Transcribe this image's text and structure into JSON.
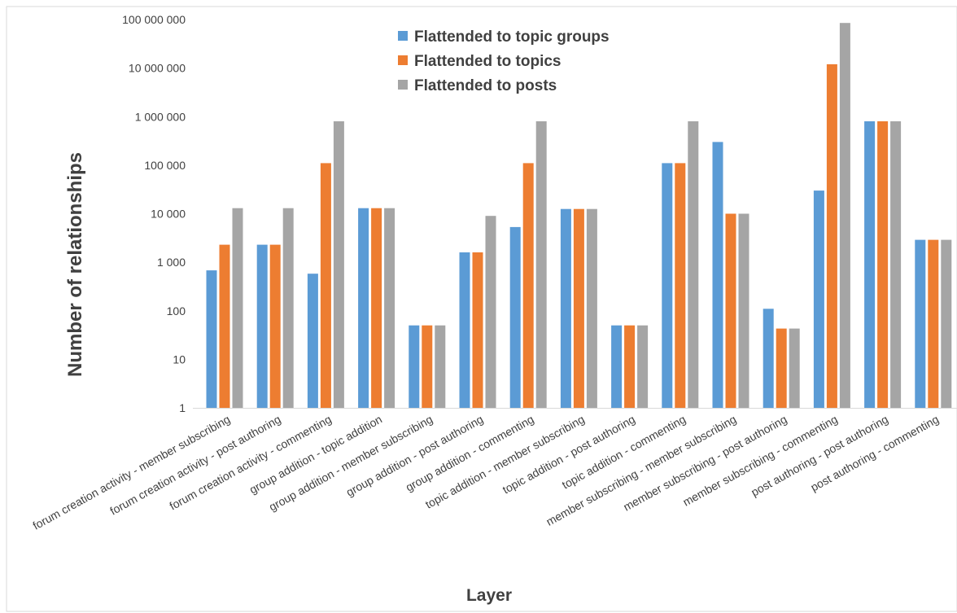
{
  "chart_data": {
    "type": "bar",
    "y_scale": "log",
    "ylim": [
      1,
      100000000
    ],
    "grid": false,
    "legend_position": "top",
    "xlabel": "Layer",
    "ylabel": "Number of relationships",
    "yticks": [
      1,
      10,
      100,
      1000,
      10000,
      100000,
      1000000,
      10000000,
      100000000
    ],
    "ytick_labels": [
      "1",
      "10",
      "100",
      "1 000",
      "10 000",
      "100 000",
      "1 000 000",
      "10 000 000",
      "100 000 000"
    ],
    "categories": [
      "forum creation activity - member subscribing",
      "forum creation activity - post authoring",
      "forum creation activity - commenting",
      "group addition - topic addition",
      "group addition - member subscribing",
      "group addition - post authoring",
      "group addition - commenting",
      "topic addition - member subscribing",
      "topic addition - post authoring",
      "topic addition - commenting",
      "member subscribing - member subscribing",
      "member subscribing - post authoring",
      "member subscribing - commenting",
      "post authoring - post authoring",
      "post authoring - commenting"
    ],
    "series": [
      {
        "name": "Flattended to topic groups",
        "color": "#5B9BD5",
        "values": [
          680,
          2300,
          580,
          13000,
          50,
          1600,
          5300,
          12500,
          50,
          110000,
          300000,
          110,
          30000,
          800000,
          2900
        ]
      },
      {
        "name": "Flattended to topics",
        "color": "#ED7D31",
        "values": [
          2300,
          2300,
          110000,
          13000,
          50,
          1600,
          110000,
          12500,
          50,
          110000,
          10000,
          43,
          12000000,
          800000,
          2900
        ]
      },
      {
        "name": "Flattended to posts",
        "color": "#A5A5A5",
        "values": [
          13000,
          13000,
          800000,
          13000,
          50,
          9000,
          800000,
          12500,
          50,
          800000,
          10000,
          43,
          85000000,
          800000,
          2900
        ]
      }
    ]
  }
}
